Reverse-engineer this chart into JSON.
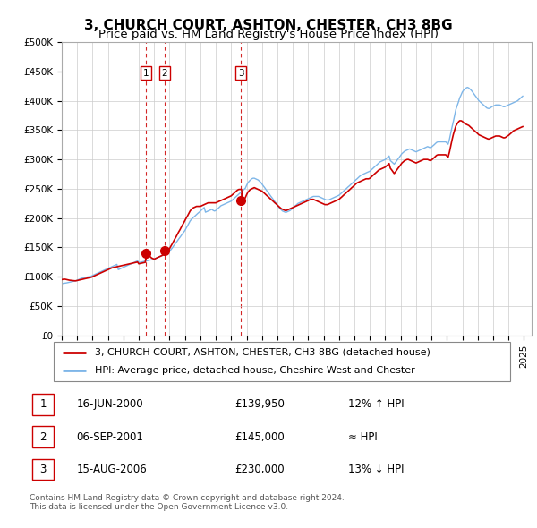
{
  "title": "3, CHURCH COURT, ASHTON, CHESTER, CH3 8BG",
  "subtitle": "Price paid vs. HM Land Registry's House Price Index (HPI)",
  "ylim": [
    0,
    500000
  ],
  "yticks": [
    0,
    50000,
    100000,
    150000,
    200000,
    250000,
    300000,
    350000,
    400000,
    450000,
    500000
  ],
  "ytick_labels": [
    "£0",
    "£50K",
    "£100K",
    "£150K",
    "£200K",
    "£250K",
    "£300K",
    "£350K",
    "£400K",
    "£450K",
    "£500K"
  ],
  "xlim_start": 1995.0,
  "xlim_end": 2025.5,
  "xticks": [
    1995,
    1996,
    1997,
    1998,
    1999,
    2000,
    2001,
    2002,
    2003,
    2004,
    2005,
    2006,
    2007,
    2008,
    2009,
    2010,
    2011,
    2012,
    2013,
    2014,
    2015,
    2016,
    2017,
    2018,
    2019,
    2020,
    2021,
    2022,
    2023,
    2024,
    2025
  ],
  "hpi_color": "#7eb6e8",
  "price_color": "#cc0000",
  "sale_marker_color": "#cc0000",
  "sale_marker_size": 7,
  "grid_color": "#cccccc",
  "background_color": "#ffffff",
  "legend_label_price": "3, CHURCH COURT, ASHTON, CHESTER, CH3 8BG (detached house)",
  "legend_label_hpi": "HPI: Average price, detached house, Cheshire West and Chester",
  "sales": [
    {
      "num": 1,
      "date_year": 2000.46,
      "price": 139950,
      "label": "16-JUN-2000",
      "price_str": "£139,950",
      "comparison": "12% ↑ HPI"
    },
    {
      "num": 2,
      "date_year": 2001.68,
      "price": 145000,
      "label": "06-SEP-2001",
      "price_str": "£145,000",
      "comparison": "≈ HPI"
    },
    {
      "num": 3,
      "date_year": 2006.62,
      "price": 230000,
      "label": "15-AUG-2006",
      "price_str": "£230,000",
      "comparison": "13% ↓ HPI"
    }
  ],
  "footer_line1": "Contains HM Land Registry data © Crown copyright and database right 2024.",
  "footer_line2": "This data is licensed under the Open Government Licence v3.0.",
  "title_fontsize": 11,
  "subtitle_fontsize": 9.5,
  "tick_fontsize": 7.5,
  "legend_fontsize": 8,
  "table_fontsize": 8.5,
  "footer_fontsize": 6.5,
  "hpi_data_x": [
    1995.0,
    1995.08,
    1995.17,
    1995.25,
    1995.33,
    1995.42,
    1995.5,
    1995.58,
    1995.67,
    1995.75,
    1995.83,
    1995.92,
    1996.0,
    1996.08,
    1996.17,
    1996.25,
    1996.33,
    1996.42,
    1996.5,
    1996.58,
    1996.67,
    1996.75,
    1996.83,
    1996.92,
    1997.0,
    1997.08,
    1997.17,
    1997.25,
    1997.33,
    1997.42,
    1997.5,
    1997.58,
    1997.67,
    1997.75,
    1997.83,
    1997.92,
    1998.0,
    1998.08,
    1998.17,
    1998.25,
    1998.33,
    1998.42,
    1998.5,
    1998.58,
    1998.67,
    1998.75,
    1998.83,
    1998.92,
    1999.0,
    1999.08,
    1999.17,
    1999.25,
    1999.33,
    1999.42,
    1999.5,
    1999.58,
    1999.67,
    1999.75,
    1999.83,
    1999.92,
    2000.0,
    2000.08,
    2000.17,
    2000.25,
    2000.33,
    2000.42,
    2000.5,
    2000.58,
    2000.67,
    2000.75,
    2000.83,
    2000.92,
    2001.0,
    2001.08,
    2001.17,
    2001.25,
    2001.33,
    2001.42,
    2001.5,
    2001.58,
    2001.67,
    2001.75,
    2001.83,
    2001.92,
    2002.0,
    2002.08,
    2002.17,
    2002.25,
    2002.33,
    2002.42,
    2002.5,
    2002.58,
    2002.67,
    2002.75,
    2002.83,
    2002.92,
    2003.0,
    2003.08,
    2003.17,
    2003.25,
    2003.33,
    2003.42,
    2003.5,
    2003.58,
    2003.67,
    2003.75,
    2003.83,
    2003.92,
    2004.0,
    2004.08,
    2004.17,
    2004.25,
    2004.33,
    2004.42,
    2004.5,
    2004.58,
    2004.67,
    2004.75,
    2004.83,
    2004.92,
    2005.0,
    2005.08,
    2005.17,
    2005.25,
    2005.33,
    2005.42,
    2005.5,
    2005.58,
    2005.67,
    2005.75,
    2005.83,
    2005.92,
    2006.0,
    2006.08,
    2006.17,
    2006.25,
    2006.33,
    2006.42,
    2006.5,
    2006.58,
    2006.67,
    2006.75,
    2006.83,
    2006.92,
    2007.0,
    2007.08,
    2007.17,
    2007.25,
    2007.33,
    2007.42,
    2007.5,
    2007.58,
    2007.67,
    2007.75,
    2007.83,
    2007.92,
    2008.0,
    2008.08,
    2008.17,
    2008.25,
    2008.33,
    2008.42,
    2008.5,
    2008.58,
    2008.67,
    2008.75,
    2008.83,
    2008.92,
    2009.0,
    2009.08,
    2009.17,
    2009.25,
    2009.33,
    2009.42,
    2009.5,
    2009.58,
    2009.67,
    2009.75,
    2009.83,
    2009.92,
    2010.0,
    2010.08,
    2010.17,
    2010.25,
    2010.33,
    2010.42,
    2010.5,
    2010.58,
    2010.67,
    2010.75,
    2010.83,
    2010.92,
    2011.0,
    2011.08,
    2011.17,
    2011.25,
    2011.33,
    2011.42,
    2011.5,
    2011.58,
    2011.67,
    2011.75,
    2011.83,
    2011.92,
    2012.0,
    2012.08,
    2012.17,
    2012.25,
    2012.33,
    2012.42,
    2012.5,
    2012.58,
    2012.67,
    2012.75,
    2012.83,
    2012.92,
    2013.0,
    2013.08,
    2013.17,
    2013.25,
    2013.33,
    2013.42,
    2013.5,
    2013.58,
    2013.67,
    2013.75,
    2013.83,
    2013.92,
    2014.0,
    2014.08,
    2014.17,
    2014.25,
    2014.33,
    2014.42,
    2014.5,
    2014.58,
    2014.67,
    2014.75,
    2014.83,
    2014.92,
    2015.0,
    2015.08,
    2015.17,
    2015.25,
    2015.33,
    2015.42,
    2015.5,
    2015.58,
    2015.67,
    2015.75,
    2015.83,
    2015.92,
    2016.0,
    2016.08,
    2016.17,
    2016.25,
    2016.33,
    2016.42,
    2016.5,
    2016.58,
    2016.67,
    2016.75,
    2016.83,
    2016.92,
    2017.0,
    2017.08,
    2017.17,
    2017.25,
    2017.33,
    2017.42,
    2017.5,
    2017.58,
    2017.67,
    2017.75,
    2017.83,
    2017.92,
    2018.0,
    2018.08,
    2018.17,
    2018.25,
    2018.33,
    2018.42,
    2018.5,
    2018.58,
    2018.67,
    2018.75,
    2018.83,
    2018.92,
    2019.0,
    2019.08,
    2019.17,
    2019.25,
    2019.33,
    2019.42,
    2019.5,
    2019.58,
    2019.67,
    2019.75,
    2019.83,
    2019.92,
    2020.0,
    2020.08,
    2020.17,
    2020.25,
    2020.33,
    2020.42,
    2020.5,
    2020.58,
    2020.67,
    2020.75,
    2020.83,
    2020.92,
    2021.0,
    2021.08,
    2021.17,
    2021.25,
    2021.33,
    2021.42,
    2021.5,
    2021.58,
    2021.67,
    2021.75,
    2021.83,
    2021.92,
    2022.0,
    2022.08,
    2022.17,
    2022.25,
    2022.33,
    2022.42,
    2022.5,
    2022.58,
    2022.67,
    2022.75,
    2022.83,
    2022.92,
    2023.0,
    2023.08,
    2023.17,
    2023.25,
    2023.33,
    2023.42,
    2023.5,
    2023.58,
    2023.67,
    2023.75,
    2023.83,
    2023.92,
    2024.0,
    2024.08,
    2024.17,
    2024.25,
    2024.33,
    2024.42,
    2024.5,
    2024.58,
    2024.67,
    2024.75,
    2024.83,
    2024.92
  ],
  "hpi_data_y": [
    88000,
    88500,
    88800,
    89000,
    89500,
    90000,
    90500,
    91000,
    91500,
    92000,
    92500,
    93000,
    94000,
    95000,
    96000,
    97000,
    97500,
    98000,
    98500,
    99000,
    99500,
    100000,
    100500,
    101000,
    102000,
    103000,
    104000,
    105000,
    106000,
    107000,
    108000,
    109000,
    110000,
    111000,
    112000,
    113000,
    114000,
    115000,
    116000,
    117000,
    118000,
    119000,
    120000,
    121000,
    112000,
    113000,
    114000,
    115000,
    116000,
    117000,
    118000,
    119000,
    120000,
    121000,
    122000,
    123000,
    124000,
    125000,
    126000,
    127000,
    124000,
    124500,
    125000,
    125500,
    126000,
    126500,
    127000,
    127500,
    128000,
    128500,
    129000,
    129500,
    130000,
    131000,
    132000,
    133000,
    134000,
    135000,
    136000,
    137000,
    138000,
    139000,
    140000,
    141000,
    143000,
    146000,
    149000,
    152000,
    155000,
    158000,
    161000,
    164000,
    167000,
    170000,
    173000,
    176000,
    179000,
    183000,
    187000,
    191000,
    195000,
    198000,
    200000,
    202000,
    204000,
    206000,
    208000,
    210000,
    212000,
    214000,
    216000,
    218000,
    210000,
    211000,
    212000,
    213000,
    214000,
    215000,
    213000,
    212000,
    213000,
    215000,
    217000,
    219000,
    221000,
    222000,
    223000,
    224000,
    225000,
    226000,
    227000,
    228000,
    229000,
    231000,
    233000,
    235000,
    237000,
    239000,
    241000,
    243000,
    245000,
    247000,
    249000,
    251000,
    256000,
    260000,
    263000,
    265000,
    267000,
    268000,
    268000,
    267000,
    266000,
    265000,
    263000,
    261000,
    258000,
    255000,
    252000,
    249000,
    246000,
    243000,
    240000,
    237000,
    234000,
    231000,
    228000,
    225000,
    222000,
    219000,
    216000,
    214000,
    212000,
    211000,
    210000,
    210000,
    211000,
    212000,
    213000,
    215000,
    217000,
    219000,
    221000,
    223000,
    225000,
    226000,
    227000,
    228000,
    229000,
    230000,
    231000,
    232000,
    233000,
    234000,
    235000,
    236000,
    237000,
    237000,
    237000,
    237000,
    237000,
    236000,
    235000,
    234000,
    233000,
    232000,
    231000,
    231000,
    231000,
    232000,
    233000,
    234000,
    235000,
    236000,
    237000,
    238000,
    239000,
    241000,
    243000,
    245000,
    247000,
    249000,
    251000,
    253000,
    255000,
    257000,
    259000,
    261000,
    263000,
    265000,
    267000,
    269000,
    271000,
    273000,
    274000,
    275000,
    276000,
    277000,
    278000,
    279000,
    280000,
    282000,
    284000,
    286000,
    288000,
    290000,
    292000,
    294000,
    296000,
    297000,
    298000,
    299000,
    300000,
    302000,
    304000,
    306000,
    298000,
    296000,
    294000,
    292000,
    295000,
    298000,
    301000,
    304000,
    307000,
    310000,
    312000,
    314000,
    315000,
    316000,
    317000,
    318000,
    317000,
    316000,
    315000,
    314000,
    313000,
    314000,
    315000,
    316000,
    317000,
    318000,
    319000,
    320000,
    321000,
    322000,
    321000,
    320000,
    321000,
    323000,
    325000,
    327000,
    329000,
    330000,
    330000,
    330000,
    330000,
    330000,
    330000,
    330000,
    328000,
    326000,
    335000,
    345000,
    355000,
    365000,
    375000,
    385000,
    392000,
    398000,
    405000,
    410000,
    415000,
    418000,
    420000,
    422000,
    423000,
    422000,
    420000,
    418000,
    415000,
    412000,
    409000,
    406000,
    403000,
    400000,
    398000,
    396000,
    394000,
    392000,
    390000,
    388000,
    387000,
    387000,
    388000,
    390000,
    391000,
    392000,
    393000,
    393000,
    393000,
    393000,
    392000,
    391000,
    390000,
    390000,
    391000,
    392000,
    393000,
    394000,
    395000,
    396000,
    397000,
    398000,
    399000,
    400000,
    402000,
    404000,
    406000,
    408000
  ],
  "price_data_x": [
    1995.0,
    1995.08,
    1995.17,
    1995.25,
    1995.33,
    1995.42,
    1995.5,
    1995.58,
    1995.67,
    1995.75,
    1995.83,
    1995.92,
    1996.0,
    1996.08,
    1996.17,
    1996.25,
    1996.33,
    1996.42,
    1996.5,
    1996.58,
    1996.67,
    1996.75,
    1996.83,
    1996.92,
    1997.0,
    1997.08,
    1997.17,
    1997.25,
    1997.33,
    1997.42,
    1997.5,
    1997.58,
    1997.67,
    1997.75,
    1997.83,
    1997.92,
    1998.0,
    1998.08,
    1998.17,
    1998.25,
    1998.33,
    1998.42,
    1998.5,
    1998.58,
    1998.67,
    1998.75,
    1998.83,
    1998.92,
    1999.0,
    1999.08,
    1999.17,
    1999.25,
    1999.33,
    1999.42,
    1999.5,
    1999.58,
    1999.67,
    1999.75,
    1999.83,
    1999.92,
    2000.0,
    2000.08,
    2000.17,
    2000.25,
    2000.33,
    2000.42,
    2000.5,
    2000.58,
    2000.67,
    2000.75,
    2000.83,
    2000.92,
    2001.0,
    2001.08,
    2001.17,
    2001.25,
    2001.33,
    2001.42,
    2001.5,
    2001.58,
    2001.67,
    2001.75,
    2001.83,
    2001.92,
    2002.0,
    2002.08,
    2002.17,
    2002.25,
    2002.33,
    2002.42,
    2002.5,
    2002.58,
    2002.67,
    2002.75,
    2002.83,
    2002.92,
    2003.0,
    2003.08,
    2003.17,
    2003.25,
    2003.33,
    2003.42,
    2003.5,
    2003.58,
    2003.67,
    2003.75,
    2003.83,
    2003.92,
    2004.0,
    2004.08,
    2004.17,
    2004.25,
    2004.33,
    2004.42,
    2004.5,
    2004.58,
    2004.67,
    2004.75,
    2004.83,
    2004.92,
    2005.0,
    2005.08,
    2005.17,
    2005.25,
    2005.33,
    2005.42,
    2005.5,
    2005.58,
    2005.67,
    2005.75,
    2005.83,
    2005.92,
    2006.0,
    2006.08,
    2006.17,
    2006.25,
    2006.33,
    2006.42,
    2006.5,
    2006.58,
    2006.67,
    2006.75,
    2006.83,
    2006.92,
    2007.0,
    2007.08,
    2007.17,
    2007.25,
    2007.33,
    2007.42,
    2007.5,
    2007.58,
    2007.67,
    2007.75,
    2007.83,
    2007.92,
    2008.0,
    2008.08,
    2008.17,
    2008.25,
    2008.33,
    2008.42,
    2008.5,
    2008.58,
    2008.67,
    2008.75,
    2008.83,
    2008.92,
    2009.0,
    2009.08,
    2009.17,
    2009.25,
    2009.33,
    2009.42,
    2009.5,
    2009.58,
    2009.67,
    2009.75,
    2009.83,
    2009.92,
    2010.0,
    2010.08,
    2010.17,
    2010.25,
    2010.33,
    2010.42,
    2010.5,
    2010.58,
    2010.67,
    2010.75,
    2010.83,
    2010.92,
    2011.0,
    2011.08,
    2011.17,
    2011.25,
    2011.33,
    2011.42,
    2011.5,
    2011.58,
    2011.67,
    2011.75,
    2011.83,
    2011.92,
    2012.0,
    2012.08,
    2012.17,
    2012.25,
    2012.33,
    2012.42,
    2012.5,
    2012.58,
    2012.67,
    2012.75,
    2012.83,
    2012.92,
    2013.0,
    2013.08,
    2013.17,
    2013.25,
    2013.33,
    2013.42,
    2013.5,
    2013.58,
    2013.67,
    2013.75,
    2013.83,
    2013.92,
    2014.0,
    2014.08,
    2014.17,
    2014.25,
    2014.33,
    2014.42,
    2014.5,
    2014.58,
    2014.67,
    2014.75,
    2014.83,
    2014.92,
    2015.0,
    2015.08,
    2015.17,
    2015.25,
    2015.33,
    2015.42,
    2015.5,
    2015.58,
    2015.67,
    2015.75,
    2015.83,
    2015.92,
    2016.0,
    2016.08,
    2016.17,
    2016.25,
    2016.33,
    2016.42,
    2016.5,
    2016.58,
    2016.67,
    2016.75,
    2016.83,
    2016.92,
    2017.0,
    2017.08,
    2017.17,
    2017.25,
    2017.33,
    2017.42,
    2017.5,
    2017.58,
    2017.67,
    2017.75,
    2017.83,
    2017.92,
    2018.0,
    2018.08,
    2018.17,
    2018.25,
    2018.33,
    2018.42,
    2018.5,
    2018.58,
    2018.67,
    2018.75,
    2018.83,
    2018.92,
    2019.0,
    2019.08,
    2019.17,
    2019.25,
    2019.33,
    2019.42,
    2019.5,
    2019.58,
    2019.67,
    2019.75,
    2019.83,
    2019.92,
    2020.0,
    2020.08,
    2020.17,
    2020.25,
    2020.33,
    2020.42,
    2020.5,
    2020.58,
    2020.67,
    2020.75,
    2020.83,
    2020.92,
    2021.0,
    2021.08,
    2021.17,
    2021.25,
    2021.33,
    2021.42,
    2021.5,
    2021.58,
    2021.67,
    2021.75,
    2021.83,
    2021.92,
    2022.0,
    2022.08,
    2022.17,
    2022.25,
    2022.33,
    2022.42,
    2022.5,
    2022.58,
    2022.67,
    2022.75,
    2022.83,
    2022.92,
    2023.0,
    2023.08,
    2023.17,
    2023.25,
    2023.33,
    2023.42,
    2023.5,
    2023.58,
    2023.67,
    2023.75,
    2023.83,
    2023.92,
    2024.0,
    2024.08,
    2024.17,
    2024.25,
    2024.33,
    2024.42,
    2024.5,
    2024.58,
    2024.67,
    2024.75,
    2024.83,
    2024.92
  ],
  "price_data_y": [
    95000,
    95500,
    95800,
    95500,
    95000,
    94500,
    94000,
    93800,
    93500,
    93200,
    93000,
    93000,
    93500,
    94000,
    94500,
    95000,
    95500,
    96000,
    96500,
    97000,
    97500,
    98000,
    98500,
    99000,
    100000,
    101000,
    102000,
    103000,
    104000,
    105000,
    106000,
    107000,
    108000,
    109000,
    110000,
    111000,
    112000,
    113000,
    114000,
    115000,
    115500,
    116000,
    116500,
    117000,
    117500,
    118000,
    118500,
    119000,
    119500,
    120000,
    120500,
    121000,
    121500,
    122000,
    122500,
    123000,
    123500,
    124000,
    124500,
    125000,
    122000,
    122500,
    123000,
    123500,
    124000,
    124500,
    139950,
    138000,
    136000,
    134000,
    132000,
    131000,
    130000,
    131000,
    132000,
    133000,
    134000,
    135000,
    136000,
    137000,
    138000,
    139000,
    140000,
    145000,
    148000,
    152000,
    156000,
    160000,
    164000,
    168000,
    172000,
    176000,
    180000,
    184000,
    188000,
    192000,
    196000,
    200000,
    204000,
    208000,
    212000,
    215000,
    217000,
    218000,
    219000,
    220000,
    220000,
    220000,
    220000,
    221000,
    222000,
    223000,
    224000,
    225000,
    226000,
    226000,
    226000,
    226000,
    226000,
    226000,
    226000,
    227000,
    228000,
    229000,
    230000,
    231000,
    232000,
    233000,
    234000,
    235000,
    236000,
    237000,
    238000,
    240000,
    242000,
    244000,
    246000,
    248000,
    249000,
    249000,
    249000,
    230000,
    231000,
    235000,
    240000,
    244000,
    247000,
    249000,
    250000,
    251000,
    252000,
    251000,
    250000,
    249000,
    248000,
    247000,
    246000,
    244000,
    242000,
    240000,
    238000,
    236000,
    234000,
    232000,
    230000,
    228000,
    226000,
    224000,
    222000,
    220000,
    218000,
    216000,
    215000,
    214000,
    213000,
    213000,
    214000,
    215000,
    216000,
    217000,
    218000,
    219000,
    220000,
    221000,
    222000,
    223000,
    224000,
    225000,
    226000,
    227000,
    228000,
    229000,
    230000,
    231000,
    232000,
    232000,
    232000,
    231000,
    230000,
    229000,
    228000,
    227000,
    226000,
    225000,
    224000,
    223000,
    223000,
    223000,
    224000,
    225000,
    226000,
    227000,
    228000,
    229000,
    230000,
    231000,
    232000,
    234000,
    236000,
    238000,
    240000,
    242000,
    244000,
    246000,
    248000,
    250000,
    252000,
    254000,
    256000,
    258000,
    260000,
    261000,
    262000,
    263000,
    264000,
    265000,
    266000,
    267000,
    267000,
    267000,
    268000,
    270000,
    272000,
    274000,
    276000,
    278000,
    280000,
    282000,
    283000,
    284000,
    285000,
    286000,
    287000,
    289000,
    291000,
    293000,
    285000,
    282000,
    279000,
    276000,
    279000,
    282000,
    285000,
    288000,
    291000,
    294000,
    296000,
    298000,
    299000,
    300000,
    300000,
    299000,
    298000,
    297000,
    296000,
    295000,
    294000,
    295000,
    296000,
    297000,
    298000,
    299000,
    300000,
    300000,
    300000,
    300000,
    299000,
    298000,
    299000,
    301000,
    303000,
    305000,
    307000,
    308000,
    308000,
    308000,
    308000,
    308000,
    308000,
    308000,
    306000,
    304000,
    313000,
    323000,
    333000,
    343000,
    350000,
    357000,
    361000,
    364000,
    366000,
    366000,
    365000,
    363000,
    361000,
    360000,
    359000,
    358000,
    356000,
    354000,
    352000,
    350000,
    348000,
    346000,
    344000,
    342000,
    341000,
    340000,
    339000,
    338000,
    337000,
    336000,
    335000,
    335000,
    336000,
    337000,
    338000,
    339000,
    340000,
    340000,
    340000,
    340000,
    339000,
    338000,
    337000,
    337000,
    338000,
    340000,
    341000,
    343000,
    345000,
    347000,
    349000,
    350000,
    351000,
    352000,
    353000,
    354000,
    355000,
    356000
  ]
}
